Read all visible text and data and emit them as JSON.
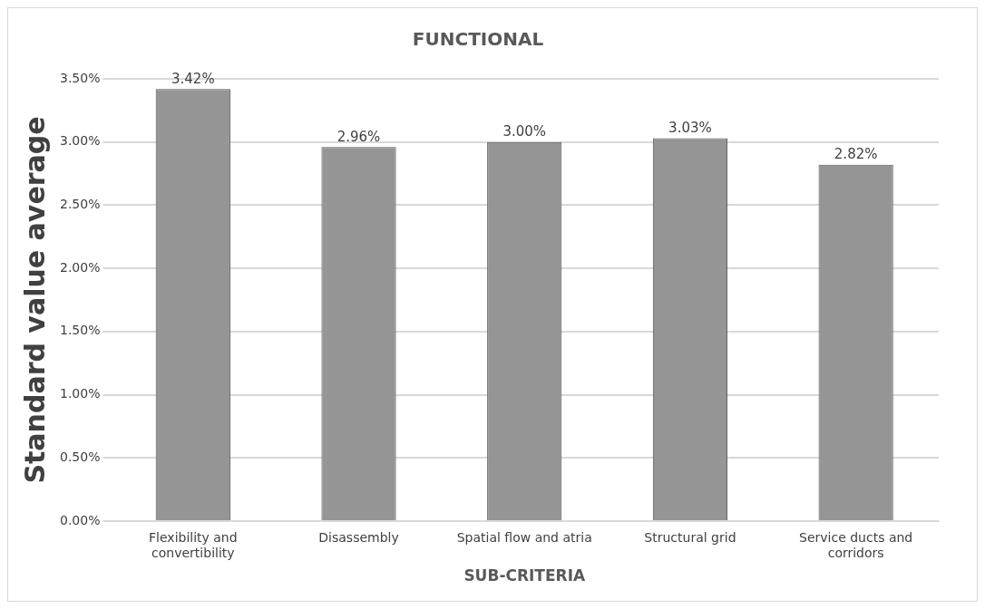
{
  "chart_data": {
    "type": "bar",
    "title": "FUNCTIONAL",
    "xlabel": "SUB-CRITERIA",
    "ylabel": "Standard value average",
    "categories": [
      "Flexibility and convertibility",
      "Disassembly",
      "Spatial flow and atria",
      "Structural grid",
      "Service ducts and corridors"
    ],
    "values": [
      3.42,
      2.96,
      3.0,
      3.03,
      2.82
    ],
    "value_labels": [
      "3.42%",
      "2.96%",
      "3.00%",
      "3.03%",
      "2.82%"
    ],
    "color": "#959595",
    "ylim": [
      0,
      3.5
    ],
    "yticks": [
      {
        "value": 0,
        "label": "0.00%"
      },
      {
        "value": 0.5,
        "label": "0.50%"
      },
      {
        "value": 1,
        "label": "1.00%"
      },
      {
        "value": 1.5,
        "label": "1.50%"
      },
      {
        "value": 2,
        "label": "2.00%"
      },
      {
        "value": 2.5,
        "label": "2.50%"
      },
      {
        "value": 3,
        "label": "3.00%"
      },
      {
        "value": 3.5,
        "label": "3.50%"
      }
    ],
    "grid": "y",
    "legend": false
  }
}
